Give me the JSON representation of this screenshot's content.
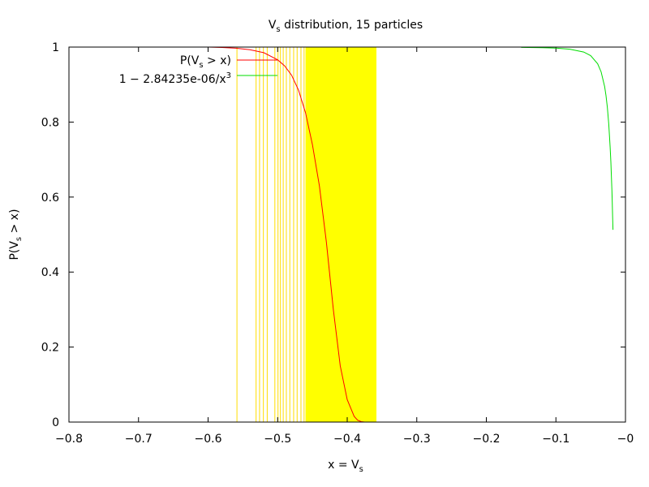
{
  "chart_data": {
    "type": "line",
    "title": "V",
    "title_sub": "s",
    "title_rest": " distribution, 15 particles",
    "xlabel": "x = V",
    "xlabel_sub": "s",
    "ylabel": "P(V",
    "ylabel_sub": "s",
    "ylabel_rest": " > x)",
    "xlim": [
      -0.8,
      0
    ],
    "ylim": [
      0,
      1
    ],
    "x_ticks": [
      -0.8,
      -0.7,
      -0.6,
      -0.5,
      -0.4,
      -0.3,
      -0.2,
      -0.1,
      0
    ],
    "x_tick_labels": [
      "−0.8",
      "−0.7",
      "−0.6",
      "−0.5",
      "−0.4",
      "−0.3",
      "−0.2",
      "−0.1",
      "−0"
    ],
    "y_ticks": [
      0,
      0.2,
      0.4,
      0.6,
      0.8,
      1
    ],
    "y_tick_labels": [
      "0",
      "0.2",
      "0.4",
      "0.6",
      "0.8",
      "1"
    ],
    "legend_position": "top-left",
    "legend": [
      {
        "label": "P(V",
        "sub": "s",
        "rest": " > x)",
        "color": "#ff0000"
      },
      {
        "label": "1 − 2.84235e-06/x",
        "sup": "3",
        "color": "#00dd00"
      }
    ],
    "samples_color": "#ffff00",
    "samples_edge_color": "#ffdd00",
    "samples": [
      -0.5585,
      -0.531,
      -0.526,
      -0.5205,
      -0.515,
      -0.504,
      -0.4995,
      -0.496,
      -0.492,
      -0.4875,
      -0.4825,
      -0.477,
      -0.472,
      -0.4665,
      -0.462
    ],
    "dense_band": [
      -0.46,
      -0.358
    ],
    "series": [
      {
        "name": "P(Vs > x)",
        "color": "#ff0000",
        "x": [
          -0.6,
          -0.58,
          -0.56,
          -0.54,
          -0.52,
          -0.5,
          -0.49,
          -0.48,
          -0.47,
          -0.46,
          -0.45,
          -0.44,
          -0.43,
          -0.42,
          -0.41,
          -0.4,
          -0.39,
          -0.385,
          -0.38,
          -0.375
        ],
        "y": [
          1.0,
          0.999,
          0.997,
          0.993,
          0.985,
          0.966,
          0.95,
          0.925,
          0.885,
          0.825,
          0.74,
          0.63,
          0.48,
          0.3,
          0.15,
          0.06,
          0.015,
          0.005,
          0.001,
          0.0
        ]
      },
      {
        "name": "1 - 2.84235e-06/x^3",
        "color": "#00dd00",
        "x": [
          -0.15,
          -0.12,
          -0.1,
          -0.08,
          -0.06,
          -0.05,
          -0.04,
          -0.035,
          -0.03,
          -0.028,
          -0.026,
          -0.024,
          -0.022,
          -0.021,
          -0.0195,
          -0.019,
          -0.0185,
          -0.018
        ],
        "y": [
          0.9991,
          0.9984,
          0.9972,
          0.9944,
          0.9868,
          0.9773,
          0.9556,
          0.9337,
          0.8947,
          0.8705,
          0.8383,
          0.7944,
          0.7331,
          0.6932,
          0.617,
          0.5859,
          0.5512,
          0.5127
        ]
      }
    ]
  }
}
